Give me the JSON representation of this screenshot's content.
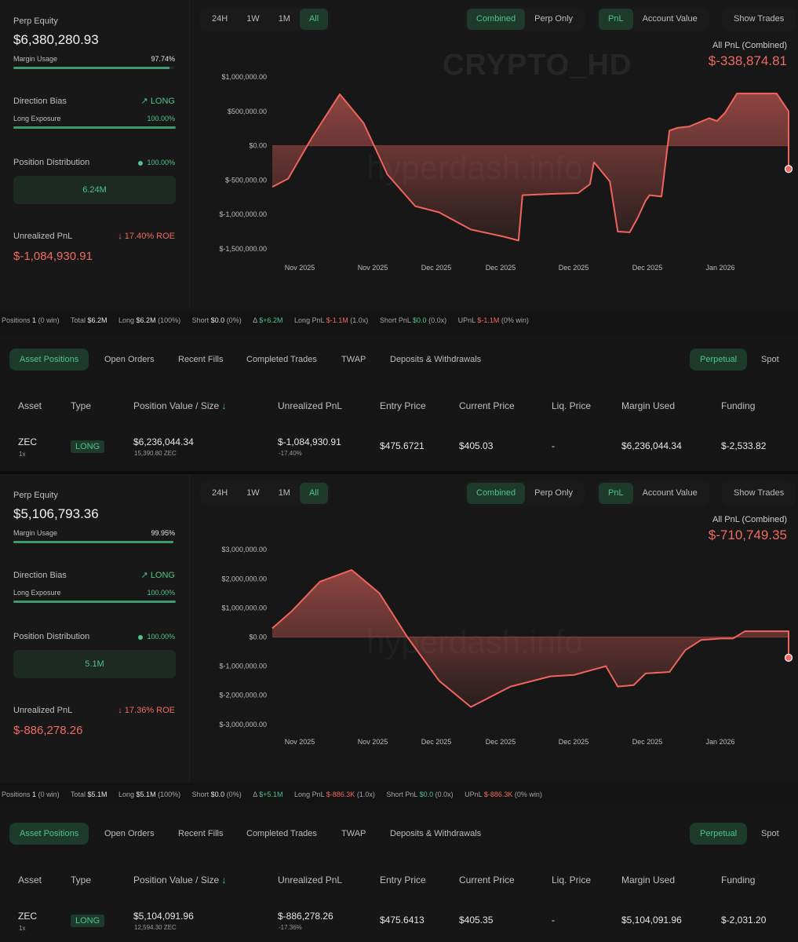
{
  "panels": [
    {
      "perp_equity_label": "Perp Equity",
      "perp_equity": "$6,380,280.93",
      "margin_usage_label": "Margin Usage",
      "margin_usage": "97.74%",
      "margin_fill": 0.9774,
      "direction_bias_label": "Direction Bias",
      "direction_bias": "LONG",
      "long_exposure_label": "Long Exposure",
      "long_exposure": "100.00%",
      "long_fill": 1.0,
      "position_distribution_label": "Position Distribution",
      "position_distribution": "100.00%",
      "distribution_value": "6.24M",
      "unrealized_pnl_label": "Unrealized PnL",
      "roe": "17.40% ROE",
      "unrealized_pnl": "$-1,084,930.91",
      "time_tabs": [
        "24H",
        "1W",
        "1M",
        "All"
      ],
      "mode_tabs": [
        "Combined",
        "Perp Only"
      ],
      "metric_tabs": [
        "PnL",
        "Account Value"
      ],
      "show_trades": "Show Trades",
      "pnl_title": "All PnL (Combined)",
      "pnl_value": "$-338,874.81",
      "watermark_brand": "CRYPTO_HD",
      "watermark_site": "hyperdash.info",
      "chart_data": {
        "type": "area",
        "title": "",
        "y_ticks": [
          "$1,000,000.00",
          "$500,000.00",
          "$0.00",
          "$-500,000.00",
          "$-1,000,000.00",
          "$-1,500,000.00"
        ],
        "y_tick_values": [
          1000000,
          500000,
          0,
          -500000,
          -1000000,
          -1500000
        ],
        "x_ticks": [
          "Nov 2025",
          "Nov 2025",
          "Dec 2025",
          "Dec 2025",
          "Dec 2025",
          "Dec 2025",
          "Jan 2026"
        ],
        "ylim": [
          -1650000,
          1150000
        ],
        "x": [
          0,
          0.04,
          0.1,
          0.17,
          0.23,
          0.29,
          0.36,
          0.42,
          0.5,
          0.58,
          0.62,
          0.63,
          0.71,
          0.77,
          0.8,
          0.81,
          0.85,
          0.87,
          0.9,
          0.92,
          0.94,
          0.95,
          0.98,
          1.0,
          1.02,
          1.05,
          1.1,
          1.12,
          1.14,
          1.17,
          1.2,
          1.24,
          1.27,
          1.3,
          1.3
        ],
        "values": [
          -600000,
          -480000,
          120000,
          750000,
          330000,
          -420000,
          -880000,
          -970000,
          -1220000,
          -1320000,
          -1380000,
          -720000,
          -700000,
          -690000,
          -560000,
          -240000,
          -520000,
          -1250000,
          -1260000,
          -1050000,
          -800000,
          -720000,
          -740000,
          220000,
          260000,
          280000,
          400000,
          360000,
          480000,
          760000,
          760000,
          760000,
          760000,
          500000,
          -338874
        ]
      },
      "stats": {
        "positions": "1",
        "positions_win": "(0 win)",
        "total": "$6.2M",
        "long": "$6.2M",
        "long_pct": "(100%)",
        "short": "$0.0",
        "short_pct": "(0%)",
        "delta": "$+6.2M",
        "long_pnl": "$-1.1M",
        "long_pnl_x": "(1.0x)",
        "short_pnl": "$0.0",
        "short_pnl_x": "(0.0x)",
        "upnl": "$-1.1M",
        "upnl_win": "(0% win)"
      },
      "position": {
        "asset": "ZEC",
        "leverage": "1x",
        "type": "LONG",
        "value": "$6,236,044.34",
        "size": "15,390.80 ZEC",
        "upnl": "$-1,084,930.91",
        "upnl_pct": "-17.40%",
        "entry": "$475.6721",
        "current": "$405.03",
        "liq": "-",
        "margin": "$6,236,044.34",
        "funding": "$-2,533.82"
      }
    },
    {
      "perp_equity_label": "Perp Equity",
      "perp_equity": "$5,106,793.36",
      "margin_usage_label": "Margin Usage",
      "margin_usage": "99.95%",
      "margin_fill": 0.9995,
      "direction_bias_label": "Direction Bias",
      "direction_bias": "LONG",
      "long_exposure_label": "Long Exposure",
      "long_exposure": "100.00%",
      "long_fill": 1.0,
      "position_distribution_label": "Position Distribution",
      "position_distribution": "100.00%",
      "distribution_value": "5.1M",
      "unrealized_pnl_label": "Unrealized PnL",
      "roe": "17.36% ROE",
      "unrealized_pnl": "$-886,278.26",
      "time_tabs": [
        "24H",
        "1W",
        "1M",
        "All"
      ],
      "mode_tabs": [
        "Combined",
        "Perp Only"
      ],
      "metric_tabs": [
        "PnL",
        "Account Value"
      ],
      "show_trades": "Show Trades",
      "pnl_title": "All PnL (Combined)",
      "pnl_value": "$-710,749.35",
      "watermark_site": "hyperdash.info",
      "chart_data": {
        "type": "area",
        "title": "",
        "y_ticks": [
          "$3,000,000.00",
          "$2,000,000.00",
          "$1,000,000.00",
          "$0.00",
          "$-1,000,000.00",
          "$-2,000,000.00",
          "$-3,000,000.00"
        ],
        "y_tick_values": [
          3000000,
          2000000,
          1000000,
          0,
          -1000000,
          -2000000,
          -3000000
        ],
        "x_ticks": [
          "Nov 2025",
          "Nov 2025",
          "Dec 2025",
          "Dec 2025",
          "Dec 2025",
          "Dec 2025",
          "Jan 2026"
        ],
        "ylim": [
          -3300000,
          3300000
        ],
        "x": [
          0,
          0.05,
          0.12,
          0.2,
          0.27,
          0.34,
          0.42,
          0.5,
          0.6,
          0.7,
          0.76,
          0.84,
          0.87,
          0.91,
          0.94,
          1.0,
          1.04,
          1.08,
          1.13,
          1.16,
          1.19,
          1.22,
          1.27,
          1.3,
          1.3
        ],
        "values": [
          300000,
          900000,
          1900000,
          2300000,
          1500000,
          0,
          -1500000,
          -2400000,
          -1700000,
          -1350000,
          -1300000,
          -1000000,
          -1700000,
          -1650000,
          -1250000,
          -1200000,
          -450000,
          -100000,
          -50000,
          -50000,
          200000,
          200000,
          200000,
          200000,
          -710749
        ]
      },
      "stats": {
        "positions": "1",
        "positions_win": "(0 win)",
        "total": "$5.1M",
        "long": "$5.1M",
        "long_pct": "(100%)",
        "short": "$0.0",
        "short_pct": "(0%)",
        "delta": "$+5.1M",
        "long_pnl": "$-886.3K",
        "long_pnl_x": "(1.0x)",
        "short_pnl": "$0.0",
        "short_pnl_x": "(0.0x)",
        "upnl": "$-886.3K",
        "upnl_win": "(0% win)"
      },
      "position": {
        "asset": "ZEC",
        "leverage": "1x",
        "type": "LONG",
        "value": "$5,104,091.96",
        "size": "12,594.30 ZEC",
        "upnl": "$-886,278.26",
        "upnl_pct": "-17.36%",
        "entry": "$475.6413",
        "current": "$405.35",
        "liq": "-",
        "margin": "$5,104,091.96",
        "funding": "$-2,031.20"
      }
    }
  ],
  "stat_labels": {
    "positions": "Positions",
    "total": "Total",
    "long": "Long",
    "short": "Short",
    "delta": "Δ",
    "long_pnl": "Long PnL",
    "short_pnl": "Short PnL",
    "upnl": "UPnL"
  },
  "table_tabs": [
    "Asset Positions",
    "Open Orders",
    "Recent Fills",
    "Completed Trades",
    "TWAP",
    "Deposits & Withdrawals"
  ],
  "market_tabs": [
    "Perpetual",
    "Spot"
  ],
  "columns": [
    "Asset",
    "Type",
    "Position Value / Size",
    "Unrealized PnL",
    "Entry Price",
    "Current Price",
    "Liq. Price",
    "Margin Used",
    "Funding"
  ],
  "sort_arrow": "↓",
  "colors": {
    "accent_green": "#4fc38d",
    "loss_red": "#ef6a63",
    "background": "#141414"
  }
}
